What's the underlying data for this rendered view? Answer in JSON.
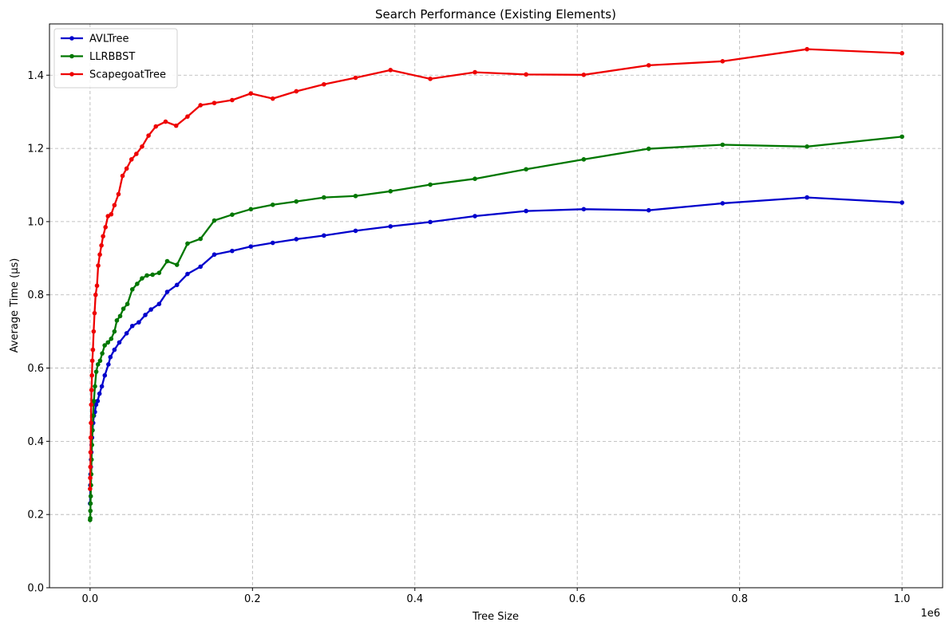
{
  "chart_data": {
    "type": "line",
    "title": "Search Performance (Existing Elements)",
    "xlabel": "Tree Size",
    "ylabel": "Average Time (µs)",
    "x_scale_label": "1e6",
    "xlim": [
      -0.05,
      1.05
    ],
    "ylim": [
      0.0,
      1.54
    ],
    "x_ticks": [
      0.0,
      0.2,
      0.4,
      0.6,
      0.8,
      1.0
    ],
    "x_tick_labels": [
      "0.0",
      "0.2",
      "0.4",
      "0.6",
      "0.8",
      "1.0"
    ],
    "y_ticks": [
      0.0,
      0.2,
      0.4,
      0.6,
      0.8,
      1.0,
      1.2,
      1.4
    ],
    "y_tick_labels": [
      "0.0",
      "0.2",
      "0.4",
      "0.6",
      "0.8",
      "1.0",
      "1.2",
      "1.4"
    ],
    "grid": true,
    "legend_position": "top-left",
    "series": [
      {
        "name": "AVLTree",
        "color": "#0000cc",
        "points": [
          [
            0.0,
            0.23
          ],
          [
            0.0003,
            0.28
          ],
          [
            0.0006,
            0.31
          ],
          [
            0.0009,
            0.33
          ],
          [
            0.0012,
            0.35
          ],
          [
            0.0015,
            0.37
          ],
          [
            0.0019,
            0.39
          ],
          [
            0.0024,
            0.41
          ],
          [
            0.003,
            0.43
          ],
          [
            0.0038,
            0.45
          ],
          [
            0.0047,
            0.47
          ],
          [
            0.0059,
            0.48
          ],
          [
            0.0074,
            0.5
          ],
          [
            0.0093,
            0.51
          ],
          [
            0.0116,
            0.53
          ],
          [
            0.0145,
            0.55
          ],
          [
            0.0181,
            0.58
          ],
          [
            0.0226,
            0.61
          ],
          [
            0.025,
            0.63
          ],
          [
            0.03,
            0.65
          ],
          [
            0.036,
            0.67
          ],
          [
            0.045,
            0.695
          ],
          [
            0.052,
            0.715
          ],
          [
            0.06,
            0.725
          ],
          [
            0.068,
            0.745
          ],
          [
            0.075,
            0.76
          ],
          [
            0.085,
            0.775
          ],
          [
            0.095,
            0.808
          ],
          [
            0.107,
            0.827
          ],
          [
            0.12,
            0.857
          ],
          [
            0.136,
            0.877
          ],
          [
            0.153,
            0.91
          ],
          [
            0.175,
            0.92
          ],
          [
            0.198,
            0.932
          ],
          [
            0.225,
            0.942
          ],
          [
            0.254,
            0.952
          ],
          [
            0.288,
            0.962
          ],
          [
            0.327,
            0.975
          ],
          [
            0.37,
            0.987
          ],
          [
            0.419,
            0.999
          ],
          [
            0.474,
            1.015
          ],
          [
            0.537,
            1.029
          ],
          [
            0.608,
            1.034
          ],
          [
            0.688,
            1.031
          ],
          [
            0.779,
            1.05
          ],
          [
            0.883,
            1.066
          ],
          [
            1.0,
            1.052
          ]
        ]
      },
      {
        "name": "LLRBBST",
        "color": "#007700",
        "points": [
          [
            0.0,
            0.185
          ],
          [
            0.0002,
            0.19
          ],
          [
            0.0004,
            0.21
          ],
          [
            0.0006,
            0.23
          ],
          [
            0.0008,
            0.25
          ],
          [
            0.0011,
            0.28
          ],
          [
            0.0014,
            0.31
          ],
          [
            0.0018,
            0.35
          ],
          [
            0.0023,
            0.39
          ],
          [
            0.0029,
            0.43
          ],
          [
            0.0037,
            0.47
          ],
          [
            0.0047,
            0.51
          ],
          [
            0.006,
            0.55
          ],
          [
            0.0076,
            0.59
          ],
          [
            0.0097,
            0.61
          ],
          [
            0.0123,
            0.62
          ],
          [
            0.015,
            0.64
          ],
          [
            0.018,
            0.662
          ],
          [
            0.022,
            0.67
          ],
          [
            0.026,
            0.68
          ],
          [
            0.03,
            0.7
          ],
          [
            0.033,
            0.73
          ],
          [
            0.037,
            0.742
          ],
          [
            0.041,
            0.762
          ],
          [
            0.046,
            0.775
          ],
          [
            0.052,
            0.815
          ],
          [
            0.058,
            0.83
          ],
          [
            0.064,
            0.845
          ],
          [
            0.07,
            0.853
          ],
          [
            0.077,
            0.855
          ],
          [
            0.085,
            0.86
          ],
          [
            0.095,
            0.892
          ],
          [
            0.107,
            0.882
          ],
          [
            0.12,
            0.94
          ],
          [
            0.136,
            0.953
          ],
          [
            0.153,
            1.003
          ],
          [
            0.175,
            1.019
          ],
          [
            0.198,
            1.034
          ],
          [
            0.225,
            1.046
          ],
          [
            0.254,
            1.055
          ],
          [
            0.288,
            1.066
          ],
          [
            0.327,
            1.07
          ],
          [
            0.37,
            1.083
          ],
          [
            0.419,
            1.101
          ],
          [
            0.474,
            1.117
          ],
          [
            0.537,
            1.143
          ],
          [
            0.608,
            1.17
          ],
          [
            0.688,
            1.199
          ],
          [
            0.779,
            1.21
          ],
          [
            0.883,
            1.205
          ],
          [
            1.0,
            1.232
          ]
        ]
      },
      {
        "name": "ScapegoatTree",
        "color": "#ee0000",
        "points": [
          [
            0.0,
            0.27
          ],
          [
            0.0002,
            0.3
          ],
          [
            0.0004,
            0.33
          ],
          [
            0.0006,
            0.37
          ],
          [
            0.0008,
            0.41
          ],
          [
            0.0011,
            0.45
          ],
          [
            0.0014,
            0.5
          ],
          [
            0.0018,
            0.54
          ],
          [
            0.0023,
            0.58
          ],
          [
            0.0028,
            0.62
          ],
          [
            0.0035,
            0.65
          ],
          [
            0.0044,
            0.7
          ],
          [
            0.0055,
            0.75
          ],
          [
            0.0068,
            0.8
          ],
          [
            0.0085,
            0.825
          ],
          [
            0.01,
            0.88
          ],
          [
            0.012,
            0.91
          ],
          [
            0.014,
            0.935
          ],
          [
            0.016,
            0.96
          ],
          [
            0.019,
            0.985
          ],
          [
            0.022,
            1.015
          ],
          [
            0.026,
            1.02
          ],
          [
            0.03,
            1.045
          ],
          [
            0.035,
            1.075
          ],
          [
            0.04,
            1.125
          ],
          [
            0.045,
            1.145
          ],
          [
            0.051,
            1.17
          ],
          [
            0.057,
            1.185
          ],
          [
            0.064,
            1.205
          ],
          [
            0.072,
            1.235
          ],
          [
            0.081,
            1.26
          ],
          [
            0.093,
            1.273
          ],
          [
            0.106,
            1.262
          ],
          [
            0.12,
            1.287
          ],
          [
            0.136,
            1.318
          ],
          [
            0.153,
            1.324
          ],
          [
            0.175,
            1.332
          ],
          [
            0.198,
            1.35
          ],
          [
            0.225,
            1.336
          ],
          [
            0.254,
            1.356
          ],
          [
            0.288,
            1.375
          ],
          [
            0.327,
            1.393
          ],
          [
            0.37,
            1.414
          ],
          [
            0.419,
            1.39
          ],
          [
            0.474,
            1.408
          ],
          [
            0.537,
            1.402
          ],
          [
            0.608,
            1.401
          ],
          [
            0.688,
            1.427
          ],
          [
            0.779,
            1.438
          ],
          [
            0.883,
            1.471
          ],
          [
            1.0,
            1.46
          ]
        ]
      }
    ]
  }
}
